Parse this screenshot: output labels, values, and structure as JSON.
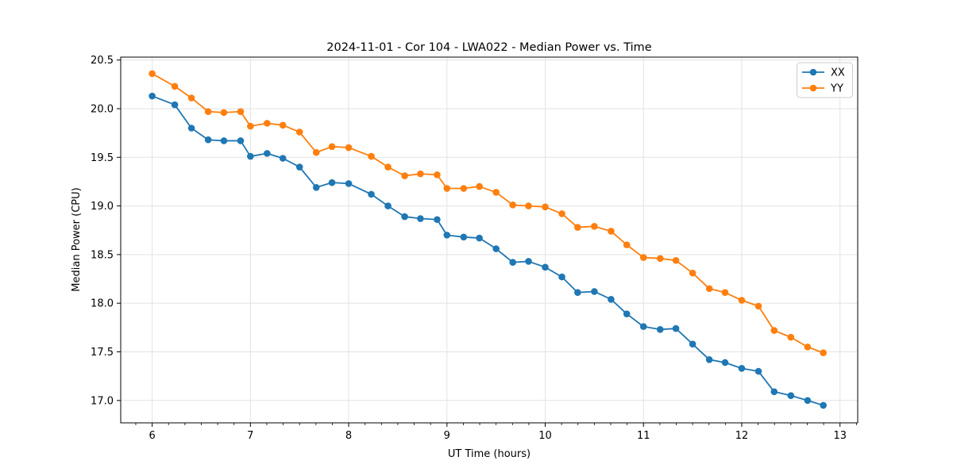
{
  "chart_data": {
    "type": "line",
    "title": "2024-11-01 - Cor 104 - LWA022 - Median Power vs. Time",
    "xlabel": "UT Time (hours)",
    "ylabel": "Median Power (CPU)",
    "xlim": [
      5.68,
      13.18
    ],
    "ylim": [
      16.77,
      20.53
    ],
    "xticks": [
      6,
      7,
      8,
      9,
      10,
      11,
      12,
      13
    ],
    "xtick_labels": [
      "6",
      "7",
      "8",
      "9",
      "10",
      "11",
      "12",
      "13"
    ],
    "yticks": [
      17.0,
      17.5,
      18.0,
      18.5,
      19.0,
      19.5,
      20.0,
      20.5
    ],
    "ytick_labels": [
      "17.0",
      "17.5",
      "18.0",
      "18.5",
      "19.0",
      "19.5",
      "20.0",
      "20.5"
    ],
    "x_minor_ticks_per_interval": 5,
    "grid": true,
    "grid_color": "#e3e3e3",
    "axis_color": "#000000",
    "background_color": "#ffffff",
    "legend_position": "upper right",
    "marker": "circle",
    "x": [
      6.0,
      6.23,
      6.4,
      6.57,
      6.73,
      6.9,
      7.0,
      7.17,
      7.33,
      7.5,
      7.67,
      7.83,
      8.0,
      8.23,
      8.4,
      8.57,
      8.73,
      8.9,
      9.0,
      9.17,
      9.33,
      9.5,
      9.67,
      9.83,
      10.0,
      10.17,
      10.33,
      10.5,
      10.67,
      10.83,
      11.0,
      11.17,
      11.33,
      11.5,
      11.67,
      11.83,
      12.0,
      12.17,
      12.33,
      12.5,
      12.67,
      12.83
    ],
    "series": [
      {
        "name": "XX",
        "color": "#1f77b4",
        "values": [
          20.13,
          20.04,
          19.8,
          19.68,
          19.67,
          19.67,
          19.51,
          19.54,
          19.49,
          19.4,
          19.19,
          19.24,
          19.23,
          19.12,
          19.0,
          18.89,
          18.87,
          18.86,
          18.7,
          18.68,
          18.67,
          18.56,
          18.42,
          18.43,
          18.37,
          18.27,
          18.11,
          18.12,
          18.04,
          17.89,
          17.76,
          17.73,
          17.74,
          17.58,
          17.42,
          17.39,
          17.33,
          17.3,
          17.09,
          17.05,
          17.0,
          16.95
        ]
      },
      {
        "name": "YY",
        "color": "#ff7f0e",
        "values": [
          20.36,
          20.23,
          20.11,
          19.97,
          19.96,
          19.97,
          19.82,
          19.85,
          19.83,
          19.76,
          19.55,
          19.61,
          19.6,
          19.51,
          19.4,
          19.31,
          19.33,
          19.32,
          19.18,
          19.18,
          19.2,
          19.14,
          19.01,
          19.0,
          18.99,
          18.92,
          18.78,
          18.79,
          18.74,
          18.6,
          18.47,
          18.46,
          18.44,
          18.31,
          18.15,
          18.11,
          18.03,
          17.97,
          17.72,
          17.65,
          17.55,
          17.49
        ]
      }
    ]
  }
}
